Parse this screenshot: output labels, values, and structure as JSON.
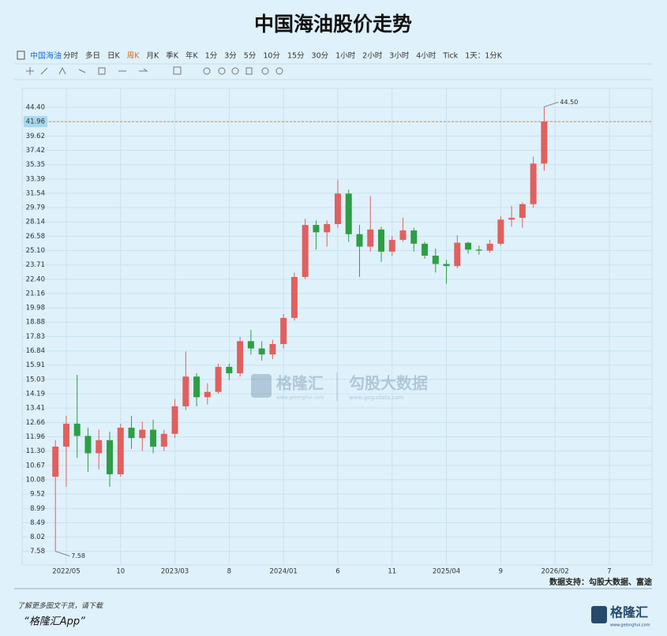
{
  "header": {
    "title": "中国海油股价走势"
  },
  "toolbar": {
    "tab": "中国海油",
    "periods": [
      "分时",
      "多日",
      "日K",
      "周K",
      "月K",
      "季K",
      "年K",
      "1分",
      "3分",
      "5分",
      "10分",
      "15分",
      "30分",
      "1小时",
      "2小时",
      "3小时",
      "4小时",
      "Tick",
      "1天：1分K"
    ]
  },
  "chart_data": {
    "type": "candlestick",
    "log_scale": true,
    "grid": true,
    "up_color": "#e0605f",
    "down_color": "#2e9e45",
    "ylim": [
      7.2,
      47
    ],
    "yticks": [
      {
        "value": 44.4,
        "label": "44.40"
      },
      41.96,
      39.62,
      37.42,
      35.35,
      33.39,
      31.54,
      29.79,
      28.14,
      26.58,
      {
        "value": 25.1,
        "label": "25.10"
      },
      23.71,
      {
        "value": 22.4,
        "label": "22.40"
      },
      21.16,
      19.98,
      18.88,
      17.83,
      16.84,
      15.91,
      15.03,
      14.19,
      13.41,
      12.66,
      11.96,
      {
        "value": 11.3,
        "label": "11.30"
      },
      10.67,
      10.08,
      9.52,
      8.99,
      8.49,
      8.02,
      7.58
    ],
    "xticks": [
      {
        "value": 1,
        "label": "2022/05"
      },
      {
        "value": 6,
        "label": "10"
      },
      {
        "value": 11,
        "label": "2023/03"
      },
      {
        "value": 16,
        "label": "8"
      },
      {
        "value": 21,
        "label": "2024/01"
      },
      {
        "value": 26,
        "label": "6"
      },
      {
        "value": 31,
        "label": "11"
      },
      {
        "value": 36,
        "label": "2025/04"
      },
      {
        "value": 41,
        "label": "9"
      },
      {
        "value": 46,
        "label": "2026/02"
      },
      {
        "value": 51,
        "label": "7"
      }
    ],
    "current_price": 41.96,
    "current_price_color": "#e08a3c",
    "open": [
      10.2,
      11.5,
      12.6,
      12.0,
      11.2,
      11.8,
      10.3,
      12.4,
      11.9,
      12.3,
      11.5,
      12.1,
      13.5,
      15.2,
      14.0,
      14.3,
      15.8,
      15.4,
      17.5,
      17.0,
      16.6,
      17.3,
      19.2,
      22.6,
      27.8,
      27.0,
      27.9,
      31.5,
      26.8,
      25.5,
      27.3,
      25.0,
      26.2,
      27.2,
      25.8,
      24.6,
      23.8,
      23.6,
      25.9,
      25.2,
      25.1,
      25.8,
      28.4,
      28.6,
      30.2,
      35.5
    ],
    "high": [
      11.8,
      13.0,
      15.3,
      12.4,
      12.3,
      12.2,
      12.6,
      13.0,
      12.7,
      12.8,
      12.3,
      13.9,
      16.8,
      15.4,
      14.8,
      16.0,
      16.0,
      17.8,
      18.3,
      17.5,
      17.6,
      19.5,
      23.0,
      28.5,
      28.3,
      28.3,
      33.3,
      32.0,
      27.8,
      31.2,
      27.6,
      26.6,
      28.6,
      27.5,
      26.0,
      25.3,
      24.2,
      26.7,
      26.0,
      25.6,
      26.2,
      28.8,
      30.0,
      30.4,
      36.5,
      44.5
    ],
    "low": [
      7.58,
      9.8,
      11.0,
      10.4,
      10.5,
      9.8,
      10.2,
      11.4,
      11.3,
      11.2,
      11.3,
      11.9,
      13.3,
      13.5,
      13.6,
      14.2,
      15.0,
      15.2,
      16.6,
      16.2,
      16.3,
      17.0,
      19.0,
      22.4,
      25.2,
      25.5,
      27.5,
      26.0,
      22.6,
      25.0,
      24.0,
      24.6,
      26.0,
      25.0,
      24.3,
      23.0,
      22.0,
      23.4,
      24.8,
      24.7,
      24.9,
      25.6,
      27.6,
      27.5,
      29.8,
      34.5
    ],
    "close": [
      11.5,
      12.6,
      12.0,
      11.2,
      11.8,
      10.3,
      12.4,
      11.9,
      12.3,
      11.5,
      12.1,
      13.5,
      15.2,
      14.0,
      14.3,
      15.8,
      15.4,
      17.5,
      17.0,
      16.6,
      17.3,
      19.2,
      22.6,
      27.8,
      27.0,
      27.9,
      31.5,
      26.8,
      25.5,
      27.3,
      25.0,
      26.2,
      27.2,
      25.8,
      24.6,
      23.8,
      23.6,
      25.9,
      25.2,
      25.1,
      25.8,
      28.4,
      28.6,
      30.2,
      35.5,
      41.96
    ],
    "annotations": [
      {
        "label": "44.50",
        "value": 44.5,
        "index": 45
      },
      {
        "label": "7.58",
        "value": 7.58,
        "index": 0
      }
    ],
    "source": "数据支持：勾股大数据、富途"
  },
  "watermark": {
    "brand": "格隆汇",
    "brand_url": "www.gelonghui.com",
    "data_brand": "勾股大数据",
    "data_url": "www.gogudata.com"
  },
  "footer": {
    "note": "了解更多图文干货，请下载",
    "app": "“格隆汇App”",
    "logo": "格隆汇",
    "logo_url": "www.gelonghui.com"
  }
}
